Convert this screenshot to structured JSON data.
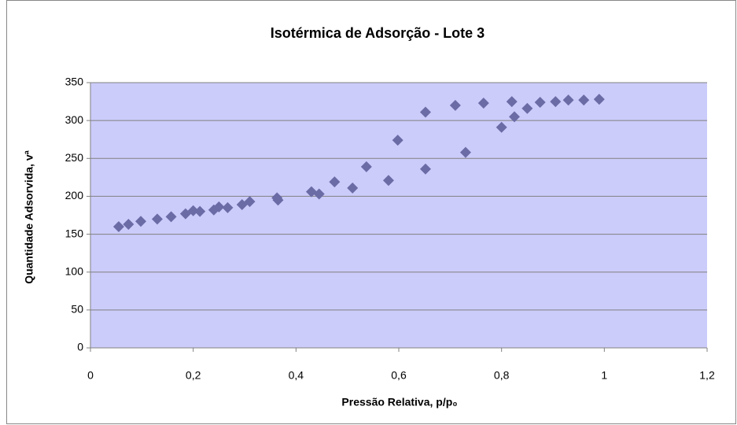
{
  "chart_data": {
    "type": "scatter",
    "title": "Isotérmica de Adsorção - Lote 3",
    "x_label": "Pressão Relativa, p/p₀",
    "y_label": "Quantidade Adsorvida, vª",
    "color": "#6b6ba6",
    "plot_background": "#ccccfb",
    "grid": true,
    "xlim": [
      0,
      1.2
    ],
    "ylim": [
      0,
      350
    ],
    "xticks": [
      0,
      {
        "value": 0.2,
        "label": "0,2"
      },
      {
        "value": 0.4,
        "label": "0,4"
      },
      {
        "value": 0.6,
        "label": "0,6"
      },
      {
        "value": 0.8,
        "label": "0,8"
      },
      1,
      {
        "value": 1.2,
        "label": "1,2"
      }
    ],
    "yticks": [
      0,
      50,
      100,
      150,
      200,
      250,
      300,
      350
    ],
    "x": [
      0.055,
      0.074,
      0.098,
      0.13,
      0.157,
      0.185,
      0.2,
      0.213,
      0.24,
      0.25,
      0.267,
      0.295,
      0.31,
      0.363,
      0.365,
      0.43,
      0.445,
      0.475,
      0.51,
      0.537,
      0.58,
      0.598,
      0.652,
      0.652,
      0.71,
      0.73,
      0.765,
      0.8,
      0.82,
      0.825,
      0.85,
      0.875,
      0.905,
      0.93,
      0.96,
      0.99
    ],
    "values": [
      160,
      163,
      167,
      170,
      173,
      177,
      181,
      180,
      182,
      186,
      185,
      189,
      193,
      198,
      195,
      206,
      203,
      219,
      211,
      239,
      221,
      274,
      311,
      236,
      320,
      258,
      323,
      291,
      325,
      305,
      316,
      324,
      325,
      327,
      327,
      328
    ]
  }
}
